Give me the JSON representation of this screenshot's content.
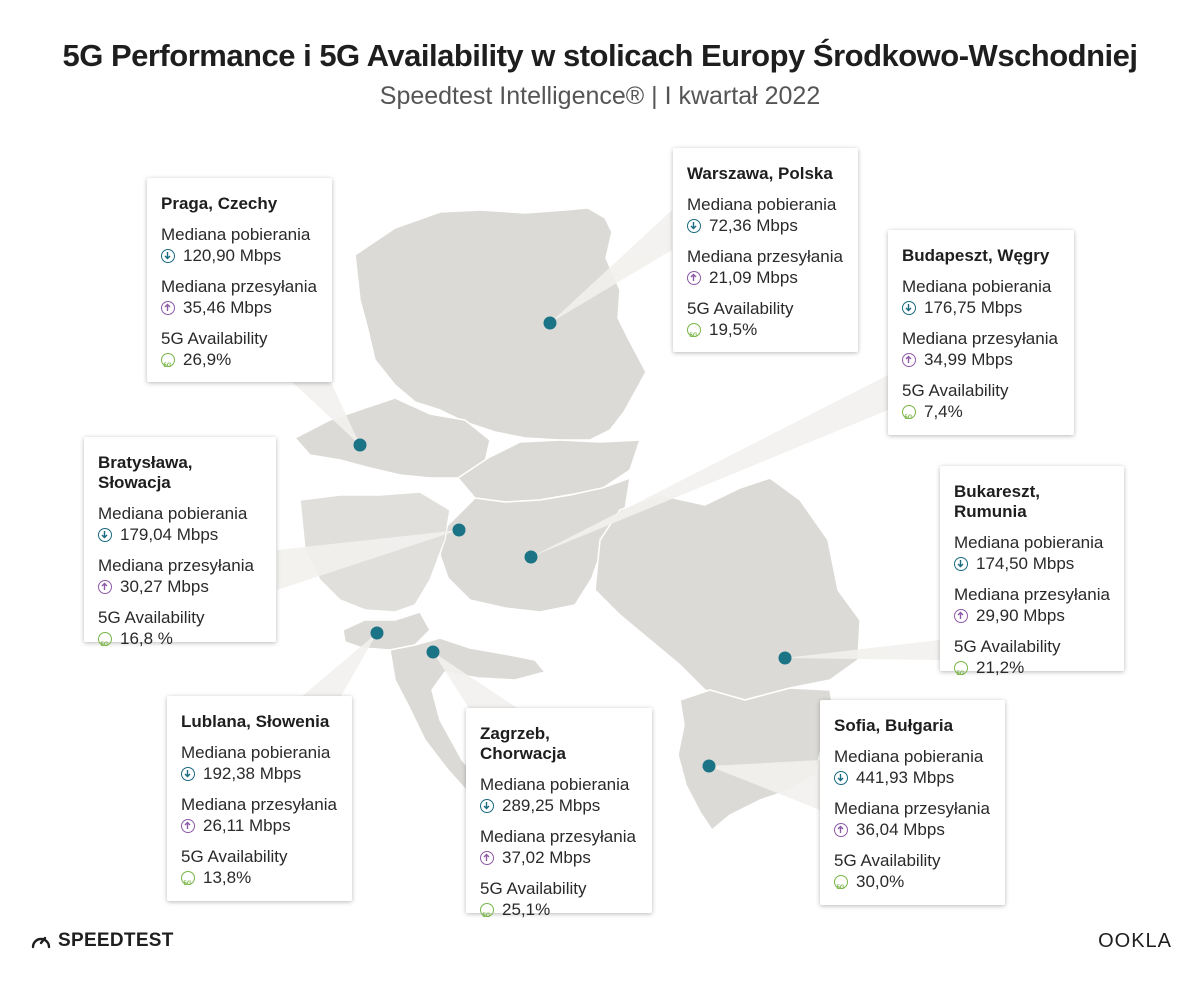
{
  "header": {
    "title": "5G Performance i 5G Availability w stolicach Europy Środkowo-Wschodniej",
    "subtitle": "Speedtest Intelligence® | I kwartał 2022"
  },
  "colors": {
    "map_fill": "#dcdad6",
    "border": "#ffffff",
    "dot": "#1a7486",
    "download_icon": "#1a6a80",
    "upload_icon": "#8e5aa8",
    "availability_icon": "#7ab648"
  },
  "labels": {
    "download": "Mediana pobierania",
    "upload": "Mediana przesyłania",
    "availability": "5G Availability"
  },
  "cities": [
    {
      "name": "Praga, Czechy",
      "download": "120,90 Mbps",
      "upload": "35,46 Mbps",
      "availability": "26,9%"
    },
    {
      "name": "Warszawa, Polska",
      "download": "72,36 Mbps",
      "upload": "21,09 Mbps",
      "availability": "19,5%"
    },
    {
      "name": "Budapeszt, Węgry",
      "download": "176,75 Mbps",
      "upload": "34,99 Mbps",
      "availability": "7,4%"
    },
    {
      "name": "Bratysława, Słowacja",
      "download": "179,04 Mbps",
      "upload": "30,27 Mbps",
      "availability": "16,8 %"
    },
    {
      "name": "Bukareszt, Rumunia",
      "download": "174,50 Mbps",
      "upload": "29,90 Mbps",
      "availability": "21,2%"
    },
    {
      "name": "Lublana, Słowenia",
      "download": "192,38 Mbps",
      "upload": "26,11 Mbps",
      "availability": "13,8%"
    },
    {
      "name": "Zagrzeb, Chorwacja",
      "download": "289,25 Mbps",
      "upload": "37,02 Mbps",
      "availability": "25,1%"
    },
    {
      "name": "Sofia, Bułgaria",
      "download": "441,93 Mbps",
      "upload": "36,04 Mbps",
      "availability": "30,0%"
    }
  ],
  "footer": {
    "speedtest_logo": "SPEEDTEST",
    "ookla_logo": "OOKLA"
  }
}
